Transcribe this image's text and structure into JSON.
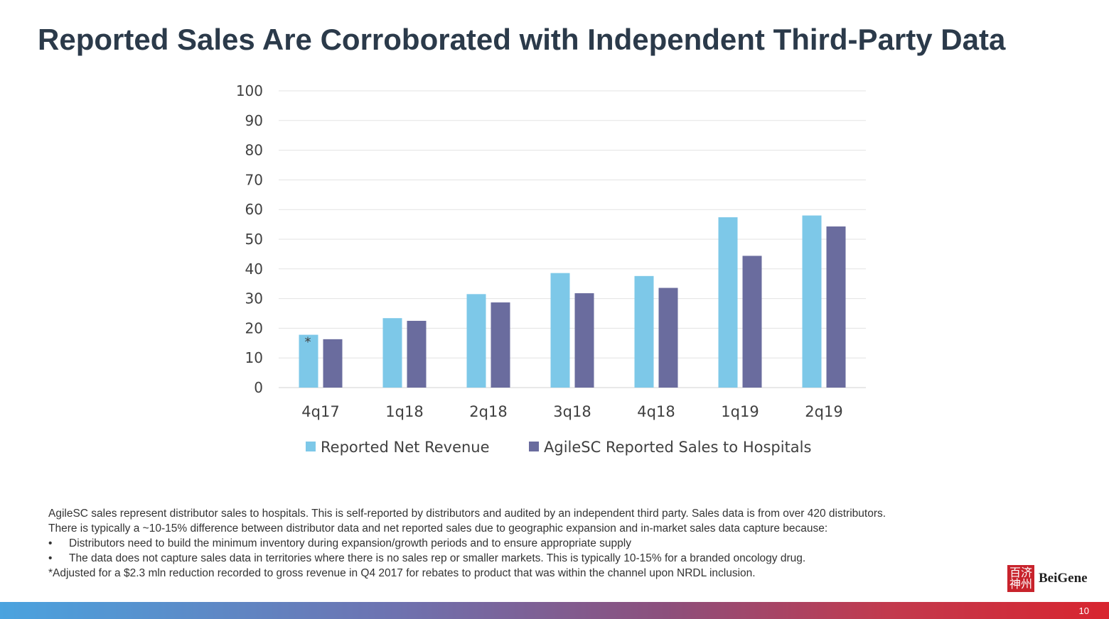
{
  "slide": {
    "title": "Reported Sales Are Corroborated with Independent Third-Party Data",
    "page_number": "10"
  },
  "chart_data": {
    "type": "bar",
    "title": "",
    "xlabel": "",
    "ylabel": "",
    "ylim": [
      0,
      100
    ],
    "yticks": [
      0,
      10,
      20,
      30,
      40,
      50,
      60,
      70,
      80,
      90,
      100
    ],
    "grid": true,
    "legend_position": "bottom",
    "categories": [
      "4q17",
      "1q18",
      "2q18",
      "3q18",
      "4q18",
      "1q19",
      "2q19"
    ],
    "series": [
      {
        "name": "Reported Net Revenue",
        "color": "#7dc8e8",
        "values": [
          17.8,
          23.4,
          31.5,
          38.6,
          37.6,
          57.4,
          58.0
        ]
      },
      {
        "name": "AgileSC Reported Sales to Hospitals",
        "color": "#6a6c9e",
        "values": [
          16.3,
          22.5,
          28.7,
          31.8,
          33.6,
          44.4,
          54.3
        ]
      }
    ],
    "annotations": [
      {
        "category": "4q17",
        "series": 0,
        "text": "*"
      }
    ]
  },
  "footnotes": {
    "line1": "AgileSC sales represent distributor sales to hospitals. This is self-reported by distributors and audited by an independent third party. Sales data is from over 420 distributors.",
    "line2": "There is typically a ~10-15% difference between distributor data and net reported sales due to geographic expansion and in-market sales data capture because:",
    "bullet_char": "•",
    "bullet1": "Distributors need to build the minimum inventory during expansion/growth periods and to ensure appropriate supply",
    "bullet2": "The data does not capture sales data in territories where there is no sales rep or smaller markets. This is typically 10-15% for a branded oncology drug.",
    "line3": "*Adjusted for a $2.3 mln reduction recorded to gross revenue in Q4 2017 for rebates to product that was within the channel upon NRDL inclusion."
  },
  "logo": {
    "mark_chars": "百济神州",
    "name": "BeiGene",
    "color": "#c8232c"
  }
}
